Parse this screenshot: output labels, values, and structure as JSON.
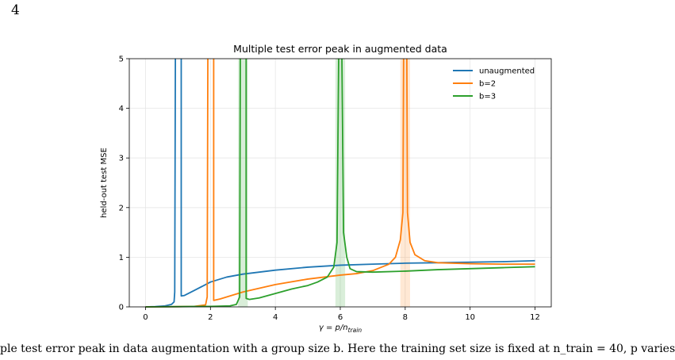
{
  "page": {
    "number": "4",
    "caption_fragment": "ple test error peak in data augmentation with a group size b. Here the training set size is fixed at n_train = 40, p varies"
  },
  "chart_data": {
    "type": "line",
    "title": "Multiple test error peak in augmented data",
    "xlabel_prefix": "γ = p/n",
    "xlabel_sub": "train",
    "ylabel": "held-out test MSE",
    "xlim": [
      -0.5,
      12.5
    ],
    "ylim": [
      0,
      5
    ],
    "xticks": [
      0,
      2,
      4,
      6,
      8,
      10,
      12
    ],
    "yticks": [
      0,
      1,
      2,
      3,
      4,
      5
    ],
    "grid": true,
    "legend_position": "top-right",
    "series": [
      {
        "name": "unaugmented",
        "color": "#1f77b4",
        "segments": [
          [
            [
              0,
              0.0
            ],
            [
              0.3,
              0.005
            ],
            [
              0.6,
              0.02
            ],
            [
              0.8,
              0.05
            ],
            [
              0.88,
              0.1
            ],
            [
              0.9,
              0.3
            ],
            [
              0.92,
              5.0
            ]
          ],
          [
            [
              1.1,
              5.0
            ],
            [
              1.1,
              0.22
            ],
            [
              1.2,
              0.23
            ],
            [
              1.5,
              0.33
            ],
            [
              2.0,
              0.5
            ],
            [
              2.5,
              0.6
            ],
            [
              3.0,
              0.66
            ],
            [
              4.0,
              0.74
            ],
            [
              5.0,
              0.8
            ],
            [
              6.0,
              0.84
            ],
            [
              7.0,
              0.86
            ],
            [
              8.0,
              0.88
            ],
            [
              9.0,
              0.89
            ],
            [
              10.0,
              0.9
            ],
            [
              11.0,
              0.91
            ],
            [
              12.0,
              0.93
            ]
          ]
        ]
      },
      {
        "name": "b=2",
        "color": "#ff7f0e",
        "band": [
          {
            "x0": 7.85,
            "x1": 8.15,
            "color": "#ff7f0e"
          }
        ],
        "segments": [
          [
            [
              0,
              0.0
            ],
            [
              1.0,
              0.005
            ],
            [
              1.5,
              0.01
            ],
            [
              1.85,
              0.04
            ],
            [
              1.9,
              0.2
            ],
            [
              1.92,
              5.0
            ]
          ],
          [
            [
              2.1,
              5.0
            ],
            [
              2.1,
              0.13
            ],
            [
              2.3,
              0.16
            ],
            [
              3.0,
              0.3
            ],
            [
              4.0,
              0.45
            ],
            [
              5.0,
              0.56
            ],
            [
              6.0,
              0.64
            ],
            [
              6.5,
              0.67
            ],
            [
              7.0,
              0.73
            ],
            [
              7.5,
              0.86
            ],
            [
              7.7,
              1.0
            ],
            [
              7.85,
              1.35
            ],
            [
              7.93,
              1.9
            ],
            [
              7.95,
              5.0
            ]
          ],
          [
            [
              8.05,
              5.0
            ],
            [
              8.07,
              1.9
            ],
            [
              8.15,
              1.3
            ],
            [
              8.3,
              1.05
            ],
            [
              8.6,
              0.93
            ],
            [
              9.0,
              0.89
            ],
            [
              10.0,
              0.87
            ],
            [
              11.0,
              0.86
            ],
            [
              12.0,
              0.86
            ]
          ]
        ]
      },
      {
        "name": "b=3",
        "color": "#2ca02c",
        "band": [
          {
            "x0": 2.85,
            "x1": 3.15,
            "color": "#2ca02c"
          },
          {
            "x0": 5.85,
            "x1": 6.15,
            "color": "#2ca02c"
          }
        ],
        "segments": [
          [
            [
              0,
              0.0
            ],
            [
              1.0,
              0.005
            ],
            [
              2.0,
              0.01
            ],
            [
              2.6,
              0.02
            ],
            [
              2.8,
              0.05
            ],
            [
              2.9,
              0.2
            ],
            [
              2.92,
              5.0
            ]
          ],
          [
            [
              3.1,
              5.0
            ],
            [
              3.1,
              0.17
            ],
            [
              3.2,
              0.15
            ],
            [
              3.5,
              0.18
            ],
            [
              4.0,
              0.27
            ],
            [
              4.5,
              0.36
            ],
            [
              5.0,
              0.43
            ],
            [
              5.3,
              0.5
            ],
            [
              5.6,
              0.6
            ],
            [
              5.8,
              0.8
            ],
            [
              5.9,
              1.3
            ],
            [
              5.95,
              5.0
            ]
          ],
          [
            [
              6.05,
              5.0
            ],
            [
              6.1,
              1.5
            ],
            [
              6.2,
              1.0
            ],
            [
              6.3,
              0.77
            ],
            [
              6.5,
              0.71
            ],
            [
              7.0,
              0.7
            ],
            [
              8.0,
              0.72
            ],
            [
              9.0,
              0.75
            ],
            [
              10.0,
              0.77
            ],
            [
              11.0,
              0.79
            ],
            [
              12.0,
              0.81
            ]
          ]
        ]
      }
    ]
  }
}
